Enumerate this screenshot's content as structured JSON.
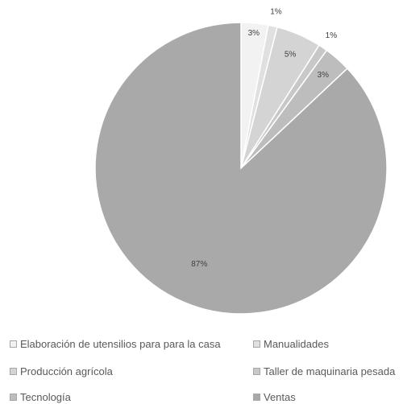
{
  "chart_data": {
    "type": "pie",
    "title": "",
    "categories": [
      "Elaboración de utensilios para para la casa",
      "Manualidades",
      "Producción agrícola",
      "Taller de maquinaria pesada",
      "Tecnología",
      "Ventas"
    ],
    "values": [
      3,
      1,
      5,
      1,
      3,
      87
    ],
    "data_labels": [
      "3%",
      "1%",
      "5%",
      "1%",
      "3%",
      "87%"
    ],
    "colors": [
      "#f2f2f2",
      "#e0e0e0",
      "#d4d4d4",
      "#c8c8c8",
      "#bdbdbd",
      "#a9a9a9"
    ],
    "legend_position": "bottom"
  }
}
